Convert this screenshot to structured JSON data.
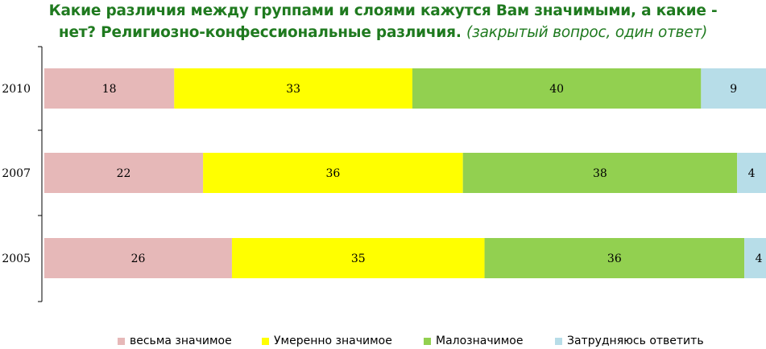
{
  "title": {
    "main_line1": "Какие различия между группами и слоями кажутся Вам значимыми, а какие -",
    "main_line2": "нет? Религиозно-конфессиональные различия. ",
    "note": "(закрытый вопрос, один ответ)"
  },
  "chart_data": {
    "type": "bar",
    "orientation": "horizontal",
    "stacked": true,
    "categories": [
      "2010",
      "2007",
      "2005"
    ],
    "series": [
      {
        "name": "весьма значимое",
        "color": "#e6b8b8",
        "values": [
          18,
          22,
          26
        ]
      },
      {
        "name": "Умеренно значимое",
        "color": "#ffff00",
        "values": [
          33,
          36,
          35
        ]
      },
      {
        "name": "Малозначимое",
        "color": "#92d050",
        "values": [
          40,
          38,
          36
        ]
      },
      {
        "name": "Затрудняюсь ответить",
        "color": "#b7dde8",
        "values": [
          9,
          4,
          4
        ]
      }
    ],
    "xlim": [
      0,
      100
    ],
    "grid": false,
    "legend": "bottom"
  }
}
